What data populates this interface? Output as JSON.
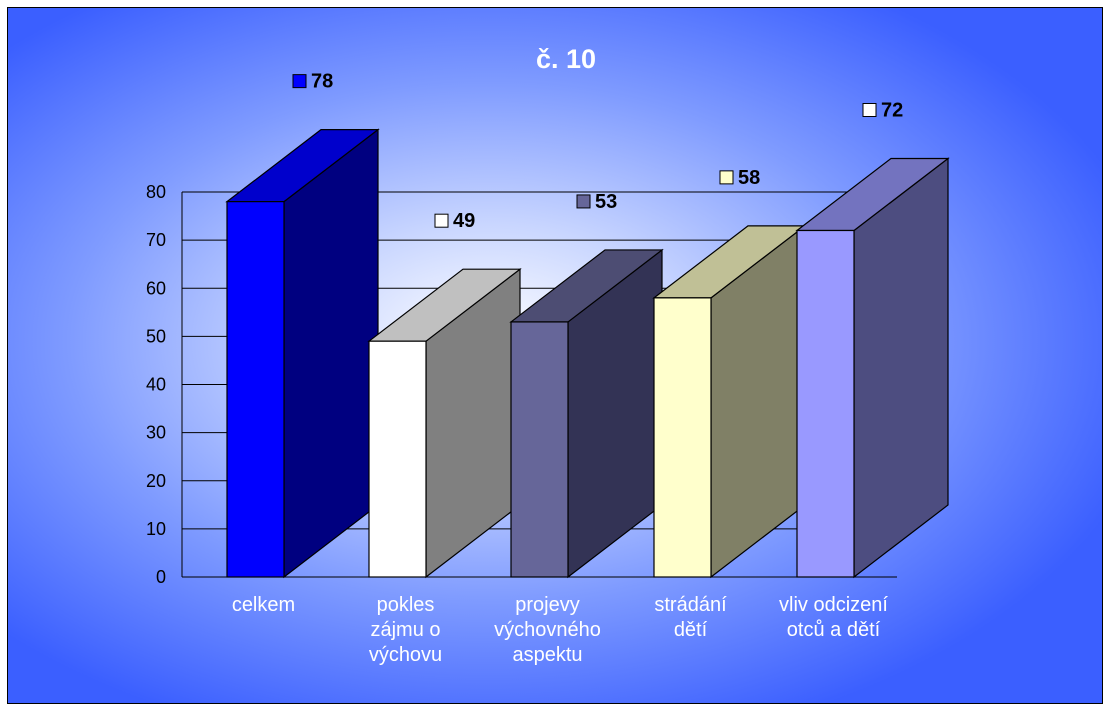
{
  "chart_data": {
    "type": "bar",
    "title": "č. 10",
    "categories": [
      [
        "celkem"
      ],
      [
        "pokles",
        "zájmu o",
        "výchovu"
      ],
      [
        "projevy",
        "výchovného",
        "aspektu"
      ],
      [
        "strádání",
        "dětí"
      ],
      [
        "vliv odcizení",
        "otců a dětí"
      ]
    ],
    "values": [
      78,
      49,
      53,
      58,
      72
    ],
    "ylim": [
      0,
      80
    ],
    "yticks": [
      0,
      10,
      20,
      30,
      40,
      50,
      60,
      70,
      80
    ],
    "grid": true,
    "three_d": true,
    "data_labels": [
      "78",
      "49",
      "53",
      "58",
      "72"
    ],
    "colors": {
      "front": [
        "#0000ff",
        "#ffffff",
        "#666699",
        "#ffffcc",
        "#9999ff"
      ],
      "side": [
        "#000080",
        "#808080",
        "#333355",
        "#808066",
        "#4d4d80"
      ],
      "top": [
        "#0000cc",
        "#c0c0c0",
        "#4d4d73",
        "#c0c096",
        "#7373bf"
      ],
      "label_swatch": [
        "#0000ff",
        "#ffffff",
        "#666699",
        "#ffffcc",
        "#ffffff"
      ]
    }
  }
}
